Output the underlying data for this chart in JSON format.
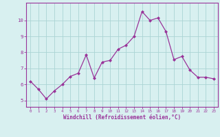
{
  "x": [
    0,
    1,
    2,
    3,
    4,
    5,
    6,
    7,
    8,
    9,
    10,
    11,
    12,
    13,
    14,
    15,
    16,
    17,
    18,
    19,
    20,
    21,
    22,
    23
  ],
  "y": [
    6.2,
    5.7,
    5.1,
    5.6,
    6.0,
    6.5,
    6.7,
    7.85,
    6.4,
    7.4,
    7.5,
    8.2,
    8.45,
    9.0,
    10.55,
    10.0,
    10.15,
    9.3,
    7.55,
    7.75,
    6.9,
    6.45,
    6.45,
    6.35
  ],
  "line_color": "#993399",
  "marker": "D",
  "marker_size": 2.0,
  "bg_color": "#d8f0f0",
  "grid_color": "#aad4d4",
  "xlabel": "Windchill (Refroidissement éolien,°C)",
  "xlabel_color": "#993399",
  "tick_color": "#993399",
  "ylabel_ticks": [
    5,
    6,
    7,
    8,
    9,
    10
  ],
  "xlim": [
    -0.5,
    23.5
  ],
  "ylim": [
    4.6,
    11.1
  ],
  "spine_color": "#993399",
  "xtick_fontsize": 4.2,
  "ytick_fontsize": 5.2,
  "xlabel_fontsize": 5.5
}
